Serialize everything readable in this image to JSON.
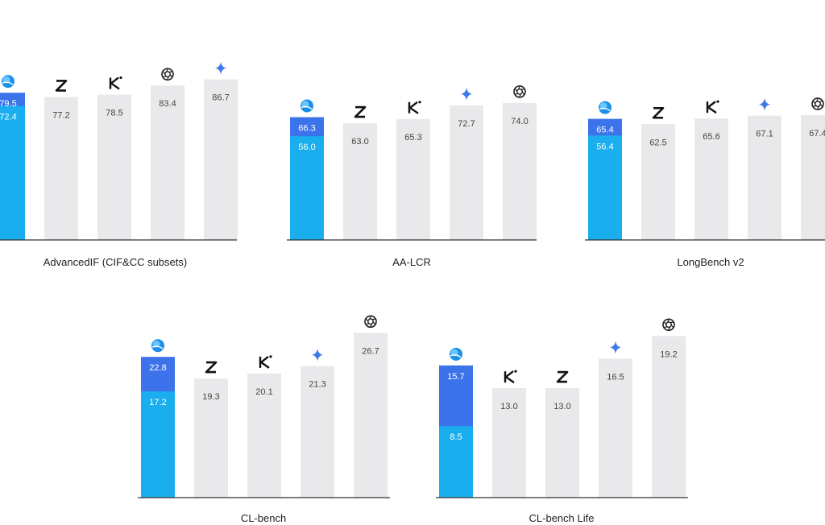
{
  "colors": {
    "accent_light": "#1aaeee",
    "accent_dark": "#3d73ea",
    "competitor_bar": "#e9e9ec",
    "axis": "#333333",
    "value_text_light": "#ffffff",
    "value_text_dark": "#444444"
  },
  "icons": {
    "ours": "globe-logo-icon",
    "z": "z-logo-icon",
    "k": "k-logo-icon",
    "diamond": "sparkle-diamond-icon",
    "knot": "knot-logo-icon"
  },
  "chart_data": [
    {
      "type": "bar",
      "title": "AdvancedIF (CIF&CC subsets)",
      "ylim": [
        0,
        100
      ],
      "bars": [
        {
          "icon": "ours",
          "value": 79.5,
          "inner_value": 72.4
        },
        {
          "icon": "z",
          "value": 77.2
        },
        {
          "icon": "k",
          "value": 78.5
        },
        {
          "icon": "knot",
          "value": 83.4
        },
        {
          "icon": "diamond",
          "value": 86.7
        }
      ]
    },
    {
      "type": "bar",
      "title": "AA-LCR",
      "ylim": [
        0,
        100
      ],
      "bars": [
        {
          "icon": "ours",
          "value": 66.3,
          "inner_value": 56.0
        },
        {
          "icon": "z",
          "value": 63.0
        },
        {
          "icon": "k",
          "value": 65.3
        },
        {
          "icon": "diamond",
          "value": 72.7
        },
        {
          "icon": "knot",
          "value": 74.0
        }
      ]
    },
    {
      "type": "bar",
      "title": "LongBench v2",
      "ylim": [
        0,
        100
      ],
      "bars": [
        {
          "icon": "ours",
          "value": 65.4,
          "inner_value": 56.4
        },
        {
          "icon": "z",
          "value": 62.5
        },
        {
          "icon": "k",
          "value": 65.6
        },
        {
          "icon": "diamond",
          "value": 67.1
        },
        {
          "icon": "knot",
          "value": 67.4
        }
      ]
    },
    {
      "type": "bar",
      "title": "CL-bench",
      "ylim": [
        0,
        30
      ],
      "bars": [
        {
          "icon": "ours",
          "value": 22.8,
          "inner_value": 17.2
        },
        {
          "icon": "z",
          "value": 19.3
        },
        {
          "icon": "k",
          "value": 20.1
        },
        {
          "icon": "diamond",
          "value": 21.3
        },
        {
          "icon": "knot",
          "value": 26.7
        }
      ]
    },
    {
      "type": "bar",
      "title": "CL-bench Life",
      "ylim": [
        0,
        22
      ],
      "bars": [
        {
          "icon": "ours",
          "value": 15.7,
          "inner_value": 8.5
        },
        {
          "icon": "k",
          "value": 13.0
        },
        {
          "icon": "z",
          "value": 13.0
        },
        {
          "icon": "diamond",
          "value": 16.5
        },
        {
          "icon": "knot",
          "value": 19.2
        }
      ]
    }
  ]
}
